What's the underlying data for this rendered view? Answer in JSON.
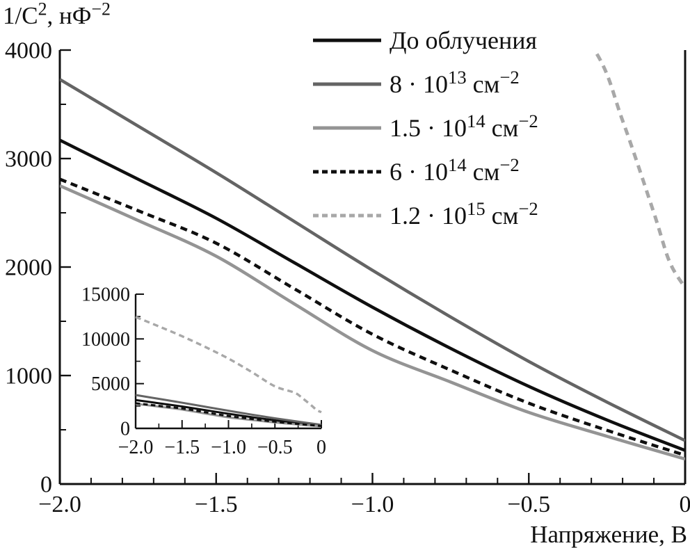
{
  "chart_data": {
    "type": "line",
    "title": "",
    "xlabel": "Напряжение, В",
    "ylabel": "1/C², нФ⁻²",
    "ylabel_segments": [
      {
        "t": "1/C"
      },
      {
        "t": "2",
        "sup": true
      },
      {
        "t": ", нФ"
      },
      {
        "t": "−2",
        "sup": true
      }
    ],
    "xlabel_segments": [
      {
        "t": "Напряжение, В"
      }
    ],
    "legend_position": "upper-center-right-inside",
    "grid": false,
    "main_axis": {
      "xlim": [
        -2.0,
        0
      ],
      "ylim": [
        0,
        4000
      ],
      "x_major_ticks": [
        -2.0,
        -1.5,
        -1.0,
        -0.5,
        0
      ],
      "x_major_labels": [
        "−2.0",
        "−1.5",
        "−1.0",
        "−0.5",
        "0"
      ],
      "x_minor_step": 0.1,
      "y_major_ticks": [
        0,
        1000,
        2000,
        3000,
        4000
      ],
      "y_major_labels": [
        "0",
        "1000",
        "2000",
        "3000",
        "4000"
      ],
      "y_minor_step": 500
    },
    "inset_axis": {
      "xlim": [
        -2.0,
        0
      ],
      "ylim": [
        0,
        15000
      ],
      "x_major_ticks": [
        -2.0,
        -1.5,
        -1.0,
        -0.5,
        0
      ],
      "x_major_labels": [
        "−2.0",
        "−1.5",
        "−1.0",
        "−0.5",
        "0"
      ],
      "x_minor_step": 0.25,
      "y_major_ticks": [
        0,
        5000,
        10000,
        15000
      ],
      "y_major_labels": [
        "0",
        "5000",
        "10000",
        "15000"
      ],
      "y_minor_step": 2500
    },
    "series": [
      {
        "name": "do-oblucheniya",
        "label": "До облучения",
        "label_segments": [
          {
            "t": "До облучения"
          }
        ],
        "color": "#0f0f0f",
        "line_style": "solid",
        "x": [
          -2.0,
          -1.75,
          -1.5,
          -1.25,
          -1.0,
          -0.75,
          -0.5,
          -0.25,
          0
        ],
        "y": [
          3170,
          2810,
          2450,
          2040,
          1630,
          1250,
          900,
          590,
          310
        ]
      },
      {
        "name": "dose-8e13",
        "label": "8·10¹³ см⁻²",
        "label_segments": [
          {
            "t": "8 · 10"
          },
          {
            "t": "13",
            "sup": true
          },
          {
            "t": " см"
          },
          {
            "t": "−2",
            "sup": true
          }
        ],
        "color": "#646464",
        "line_style": "solid",
        "x": [
          -2.0,
          -1.75,
          -1.5,
          -1.25,
          -1.0,
          -0.75,
          -0.5,
          -0.25,
          0
        ],
        "y": [
          3730,
          3300,
          2870,
          2420,
          1970,
          1540,
          1130,
          755,
          400
        ]
      },
      {
        "name": "dose-1.5e14",
        "label": "1.5·10¹⁴ см⁻²",
        "label_segments": [
          {
            "t": "1.5 · 10"
          },
          {
            "t": "14",
            "sup": true
          },
          {
            "t": " см"
          },
          {
            "t": "−2",
            "sup": true
          }
        ],
        "color": "#949494",
        "line_style": "solid",
        "x": [
          -2.0,
          -1.75,
          -1.5,
          -1.25,
          -1.0,
          -0.75,
          -0.5,
          -0.25,
          0
        ],
        "y": [
          2750,
          2430,
          2100,
          1660,
          1230,
          940,
          660,
          440,
          230
        ]
      },
      {
        "name": "dose-6e14",
        "label": "6·10¹⁴ см⁻²",
        "label_segments": [
          {
            "t": "6 · 10"
          },
          {
            "t": "14",
            "sup": true
          },
          {
            "t": " см"
          },
          {
            "t": "−2",
            "sup": true
          }
        ],
        "color": "#0f0f0f",
        "line_style": "dashed",
        "x": [
          -2.0,
          -1.75,
          -1.5,
          -1.25,
          -1.0,
          -0.75,
          -0.5,
          -0.25,
          0
        ],
        "y": [
          2810,
          2520,
          2220,
          1800,
          1380,
          1050,
          745,
          495,
          265
        ]
      },
      {
        "name": "dose-1.2e15",
        "label": "1.2·10¹⁵ см⁻²",
        "label_segments": [
          {
            "t": "1.2 · 10"
          },
          {
            "t": "15",
            "sup": true
          },
          {
            "t": " см"
          },
          {
            "t": "−2",
            "sup": true
          }
        ],
        "color": "#a8a8a8",
        "line_style": "dashed",
        "x": [
          -2.0,
          -1.75,
          -1.5,
          -1.25,
          -1.0,
          -0.75,
          -0.5,
          -0.29,
          -0.2,
          -0.1,
          -0.05,
          0
        ],
        "y": [
          12450,
          11400,
          10300,
          9100,
          7800,
          6300,
          4700,
          4000,
          3350,
          2500,
          2050,
          1810
        ]
      }
    ]
  }
}
